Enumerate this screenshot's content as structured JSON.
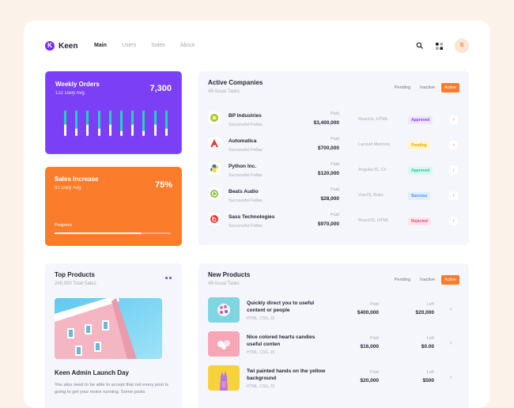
{
  "brand": {
    "logo_letter": "K",
    "name": "Keen"
  },
  "nav": [
    "Main",
    "Users",
    "Sales",
    "About"
  ],
  "nav_active": 0,
  "header": {
    "avatar_initial": "S"
  },
  "weekly_orders": {
    "title": "Weekly Orders",
    "subtitle": "122 Daily Avg.",
    "value": "7,300",
    "bar_fill_fractions": [
      0.55,
      0.72,
      0.55,
      0.72,
      0.55,
      0.82,
      0.55,
      0.82,
      0.55,
      0.72
    ]
  },
  "sales_increase": {
    "title": "Sales Increase",
    "subtitle": "92 Daily Avg.",
    "value": "75%",
    "progress_label": "Progress",
    "progress": 0.75
  },
  "active_companies": {
    "title": "Active Companies",
    "subtitle": "49 Acual Tasks",
    "tabs": [
      "Pending",
      "Inactive",
      "Active"
    ],
    "active_tab": 2,
    "paid_label": "Paid",
    "rows": [
      {
        "name": "BP Industries",
        "tag": "Successful Fellas",
        "paid": "$3,400,000",
        "tech": "ReactJs, HTML",
        "status": "Approved",
        "status_color": "#7b3ff6",
        "status_bg": "#efe6ff"
      },
      {
        "name": "Automatica",
        "tag": "Successful Fellas",
        "paid": "$700,000",
        "tech": "Laravel Metronic",
        "status": "Pending",
        "status_color": "#e6a700",
        "status_bg": "#fff6c9"
      },
      {
        "name": "Python Inc.",
        "tag": "Successful Fellas",
        "paid": "$120,000",
        "tech": "AngularJS, C#",
        "status": "Approved",
        "status_color": "#1bc5a0",
        "status_bg": "#d9f8ef"
      },
      {
        "name": "Beats Audio",
        "tag": "Successful Fellas",
        "paid": "$28,000",
        "tech": "VueJS, Ruby",
        "status": "Success",
        "status_color": "#3a8ff0",
        "status_bg": "#e1efff"
      },
      {
        "name": "Sass Technologies",
        "tag": "Successful Fellas",
        "paid": "$970,000",
        "tech": "ReactJS, HTML",
        "status": "Rejected",
        "status_color": "#f1416c",
        "status_bg": "#ffe4ea"
      }
    ]
  },
  "top_products": {
    "title": "Top Products",
    "subtitle": "240,000 Total Sales",
    "post_title": "Keen Admin Launch Day",
    "post_text": "You also need to be able to accept that not every post is going to get your motor running. Some posts"
  },
  "new_products": {
    "title": "New Products",
    "subtitle": "49 Acual Tasks",
    "tabs": [
      "Pending",
      "Inactive",
      "Active"
    ],
    "active_tab": 2,
    "paid_label": "Paid",
    "left_label": "Left",
    "rows": [
      {
        "title": "Quickly direct you to useful content or people",
        "tags": "HTML, CSS, JS",
        "paid": "$400,000",
        "left": "$20,000"
      },
      {
        "title": "Nice colored hearts candies useful conten",
        "tags": "HTML, CSS, JS",
        "paid": "$16,000",
        "left": "$0.00"
      },
      {
        "title": "Twi painted hands on the yellow background",
        "tags": "HTML, CSS, JS",
        "paid": "$20,000",
        "left": "$500"
      }
    ]
  }
}
